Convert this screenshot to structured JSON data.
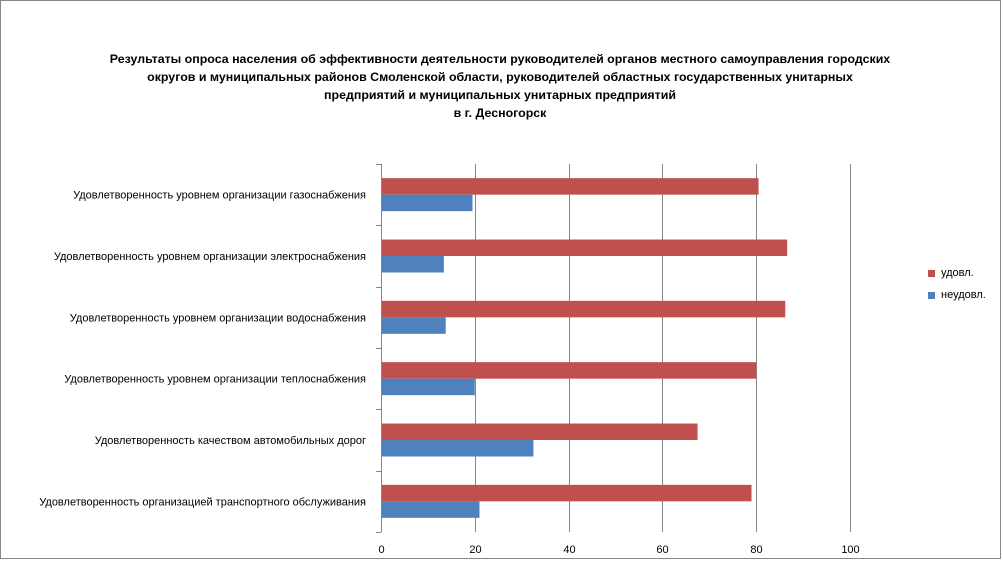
{
  "colors": {
    "satisfied": "#C0504D",
    "unsatisfied": "#4F81BD",
    "grid": "#868686",
    "axis": "#868686"
  },
  "title_lines": [
    "Результаты опроса населения об эффективности деятельности руководителей органов местного самоуправления городских",
    "округов и муниципальных районов Смоленской области, руководителей областных государственных унитарных",
    "предприятий и муниципальных унитарных предприятий",
    "в г. Десногорск"
  ],
  "chart_data": {
    "type": "bar",
    "orientation": "horizontal",
    "title": "Результаты опроса населения об эффективности деятельности руководителей органов местного самоуправления городских округов и муниципальных районов Смоленской области, руководителей областных государственных унитарных предприятий и муниципальных унитарных предприятий в г. Десногорск",
    "categories": [
      "Удовлетворенность  уровнем  организации газоснабжения",
      "Удовлетворенность  уровнем организации электроснабжения",
      "Удовлетворенность  уровнем  организации водоснабжения",
      "Удовлетворенность  уровнем организации теплоснабжения",
      "Удовлетворенность  качеством  автомобильных дорог",
      "Удовлетворенность  организацией транспортного обслуживания"
    ],
    "series": [
      {
        "name": "удовл.",
        "values": [
          80.5,
          86.6,
          86.2,
          80.0,
          67.5,
          79.0
        ]
      },
      {
        "name": "неудовл.",
        "values": [
          19.5,
          13.4,
          13.8,
          20.0,
          32.5,
          21.0
        ]
      }
    ],
    "xlim": [
      0,
      100
    ],
    "xticks": [
      0,
      20,
      40,
      60,
      80,
      100
    ],
    "grid": true,
    "legend_position": "right"
  }
}
